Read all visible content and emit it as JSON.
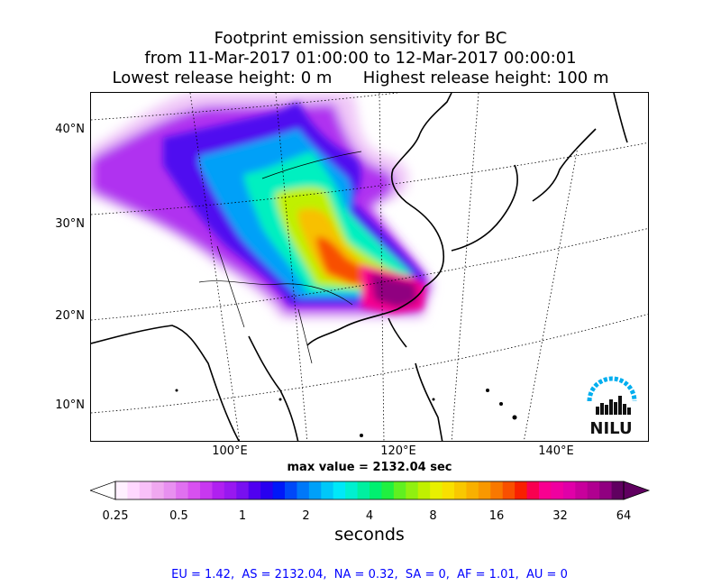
{
  "title": {
    "line1": "Footprint emission sensitivity for BC",
    "line2": "from 11-Mar-2017 01:00:00 to 12-Mar-2017 00:00:01",
    "line3": "Lowest release height: 0 m      Highest release height: 100 m"
  },
  "map": {
    "lat_labels": [
      "40°N",
      "30°N",
      "20°N",
      "10°N"
    ],
    "lon_labels": [
      "100°E",
      "120°E",
      "140°E"
    ],
    "logo_text": "NILU",
    "logo_color": "#00aeef",
    "icons": [
      "nilu-logo"
    ]
  },
  "max_value_text": "max value = 2132.04 sec",
  "colorbar": {
    "units": "seconds",
    "tick_labels": [
      "0.25",
      "0.5",
      "1",
      "2",
      "4",
      "8",
      "16",
      "32",
      "64"
    ],
    "colors": [
      "#fff0ff",
      "#ffd8ff",
      "#f8c0f8",
      "#f0a8f0",
      "#e890f0",
      "#e070f0",
      "#d850f0",
      "#c838f0",
      "#b020f0",
      "#9818f0",
      "#7810f0",
      "#5000f0",
      "#2800f0",
      "#0018f8",
      "#0048f8",
      "#0078f8",
      "#00a0f8",
      "#00c8f8",
      "#00e8f8",
      "#00f0d0",
      "#00f0a0",
      "#00f070",
      "#20f040",
      "#60f020",
      "#90f010",
      "#c0f000",
      "#e8f000",
      "#f8e000",
      "#f8c800",
      "#f8b000",
      "#f89800",
      "#f87800",
      "#f85000",
      "#f82000",
      "#f80050",
      "#f80090",
      "#f000a0",
      "#e000a8",
      "#c8009c",
      "#b00090",
      "#900080",
      "#600060"
    ],
    "scale": "log2"
  },
  "stats_text": "EU = 1.42,  AS = 2132.04,  NA = 0.32,  SA = 0,  AF = 1.01,  AU = 0"
}
